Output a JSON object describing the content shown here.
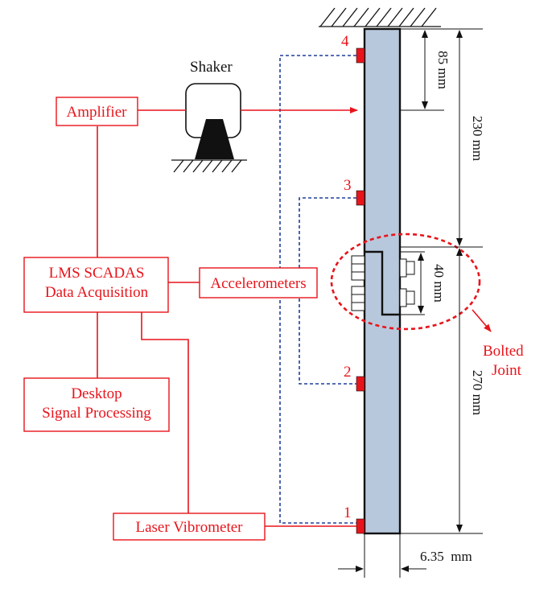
{
  "labels": {
    "shaker": "Shaker",
    "amplifier": "Amplifier",
    "lms_line1": "LMS SCADAS",
    "lms_line2": "Data Acquisition",
    "accelerometers": "Accelerometers",
    "desktop_line1": "Desktop",
    "desktop_line2": "Signal Processing",
    "laser": "Laser Vibrometer",
    "bolted_line1": "Bolted",
    "bolted_line2": "Joint"
  },
  "sensor_numbers": [
    "1",
    "2",
    "3",
    "4"
  ],
  "dimensions": {
    "top_offset": "85 mm",
    "upper_length": "230 mm",
    "joint_length": "40 mm",
    "lower_length": "270 mm",
    "thickness": "6.35  mm"
  },
  "colors": {
    "signal_red": "#e8141b",
    "dashed_blue": "#1f3f9a",
    "beam_fill": "#b8c8dc",
    "line_black": "#111111"
  }
}
